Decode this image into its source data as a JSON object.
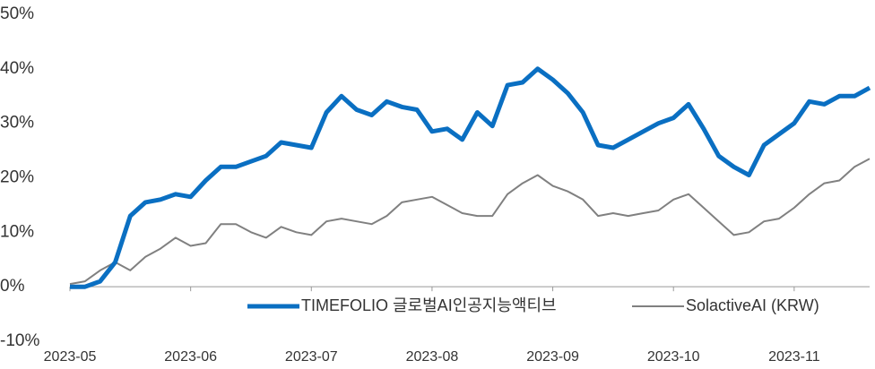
{
  "chart_data": {
    "type": "line",
    "categories": [
      "2023-05",
      null,
      null,
      null,
      null,
      null,
      null,
      null,
      "2023-06",
      null,
      null,
      null,
      null,
      null,
      null,
      null,
      "2023-07",
      null,
      null,
      null,
      null,
      null,
      null,
      null,
      "2023-08",
      null,
      null,
      null,
      null,
      null,
      null,
      null,
      "2023-09",
      null,
      null,
      null,
      null,
      null,
      null,
      null,
      "2023-10",
      null,
      null,
      null,
      null,
      null,
      null,
      null,
      "2023-11",
      null,
      null,
      null,
      null,
      null
    ],
    "series": [
      {
        "name": "TIMEFOLIO 글로벌AI인공지능액티브",
        "color": "#0a6fc2",
        "values": [
          0,
          0,
          1,
          4.5,
          13,
          15.5,
          16,
          17,
          16.5,
          19.5,
          22,
          22,
          23,
          24,
          26.5,
          26,
          25.5,
          32,
          35,
          32.5,
          31.5,
          34,
          33,
          32.5,
          28.5,
          29,
          27,
          32,
          29.5,
          37,
          37.5,
          40,
          38,
          35.5,
          32,
          26,
          25.5,
          27,
          28.5,
          30,
          31,
          33.5,
          29,
          24,
          22,
          20.5,
          26,
          28,
          30,
          34,
          33.5,
          35,
          35,
          36.5
        ]
      },
      {
        "name": "SolactiveAI (KRW)",
        "color": "#808080",
        "values": [
          0.5,
          1,
          3,
          4.5,
          3,
          5.5,
          7,
          9,
          7.5,
          8,
          11.5,
          11.5,
          10,
          9,
          11,
          10,
          9.5,
          12,
          12.5,
          12,
          11.5,
          13,
          15.5,
          16,
          16.5,
          15,
          13.5,
          13,
          13,
          17,
          19,
          20.5,
          18.5,
          17.5,
          16,
          13,
          13.5,
          13,
          13.5,
          14,
          16,
          17,
          14.5,
          12,
          9.5,
          10,
          12,
          12.5,
          14.5,
          17,
          19,
          19.5,
          22,
          23.5
        ]
      }
    ],
    "ylim": [
      -10,
      50
    ],
    "yticks": [
      {
        "value": -10,
        "label": "-10%"
      },
      {
        "value": 0,
        "label": "0%"
      },
      {
        "value": 10,
        "label": "10%"
      },
      {
        "value": 20,
        "label": "20%"
      },
      {
        "value": 30,
        "label": "30%"
      },
      {
        "value": 40,
        "label": "40%"
      },
      {
        "value": 50,
        "label": "50%"
      }
    ]
  }
}
